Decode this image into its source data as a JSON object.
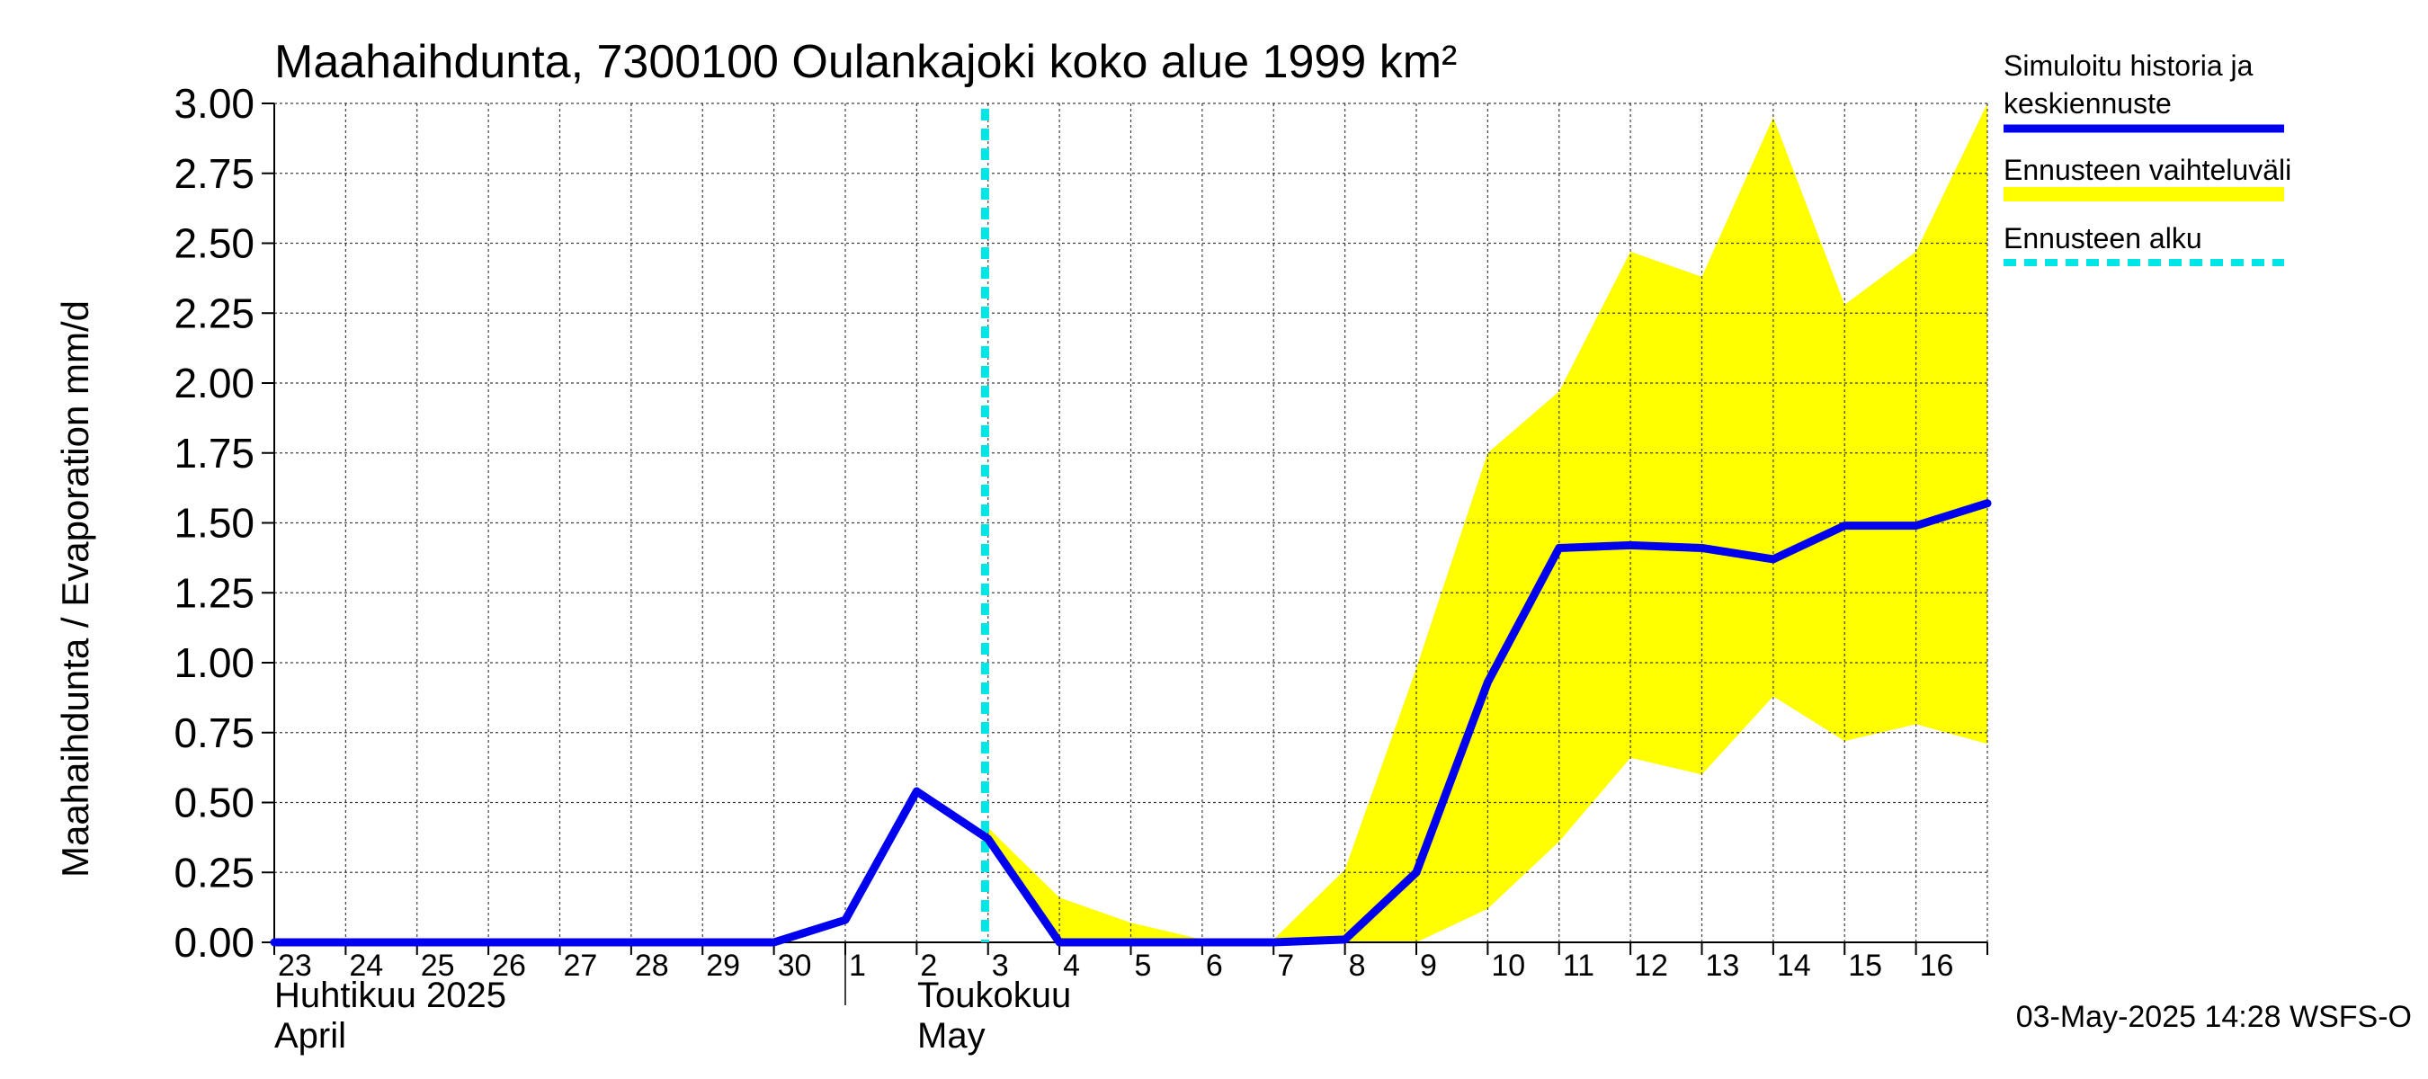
{
  "chart_data": {
    "type": "line",
    "title": "Maahaihdunta, 7300100 Oulankajoki koko alue 1999 km²",
    "ylabel": "Maahaihdunta / Evaporation   mm/d",
    "xlabel": "",
    "ylim": [
      0,
      3.0
    ],
    "yticks": [
      "0.00",
      "0.25",
      "0.50",
      "0.75",
      "1.00",
      "1.25",
      "1.50",
      "1.75",
      "2.00",
      "2.25",
      "2.50",
      "2.75",
      "3.00"
    ],
    "grid": true,
    "x_day_labels": [
      "23",
      "24",
      "25",
      "26",
      "27",
      "28",
      "29",
      "30",
      "1",
      "2",
      "3",
      "4",
      "5",
      "6",
      "7",
      "8",
      "9",
      "10",
      "11",
      "12",
      "13",
      "14",
      "15",
      "16"
    ],
    "x_dates": [
      "2025-04-23",
      "2025-04-24",
      "2025-04-25",
      "2025-04-26",
      "2025-04-27",
      "2025-04-28",
      "2025-04-29",
      "2025-04-30",
      "2025-05-01",
      "2025-05-02",
      "2025-05-03",
      "2025-05-04",
      "2025-05-05",
      "2025-05-06",
      "2025-05-07",
      "2025-05-08",
      "2025-05-09",
      "2025-05-10",
      "2025-05-11",
      "2025-05-12",
      "2025-05-13",
      "2025-05-14",
      "2025-05-15",
      "2025-05-16",
      "2025-05-17"
    ],
    "month_labels": [
      {
        "fi": "Huhtikuu  2025",
        "en": "April"
      },
      {
        "fi": "Toukokuu",
        "en": "May"
      }
    ],
    "series": [
      {
        "name": "Simuloitu historia ja keskiennuste",
        "color": "#0000ee",
        "values": [
          0,
          0,
          0,
          0,
          0,
          0,
          0,
          0,
          0.08,
          0.54,
          0.37,
          0,
          0,
          0,
          0,
          0.01,
          0.25,
          0.93,
          1.41,
          1.42,
          1.41,
          1.37,
          1.49,
          1.49,
          1.57
        ]
      }
    ],
    "band": {
      "name": "Ennusteen vaihteluväli",
      "color": "#ffff00",
      "start_index": 10,
      "upper": [
        0.41,
        0.16,
        0.07,
        0.01,
        0.01,
        0.26,
        0.98,
        1.75,
        1.97,
        2.47,
        2.38,
        2.95,
        2.28,
        2.47,
        3.0
      ],
      "lower": [
        0.37,
        0,
        0,
        0,
        0,
        0,
        0,
        0.12,
        0.36,
        0.66,
        0.6,
        0.88,
        0.72,
        0.78,
        0.71
      ]
    },
    "forecast_start": {
      "name": "Ennusteen alku",
      "color": "#00e5e5",
      "x_value": "2025-05-02 23:00"
    },
    "legend_position": "right",
    "footer": "03-May-2025 14:28 WSFS-O"
  }
}
